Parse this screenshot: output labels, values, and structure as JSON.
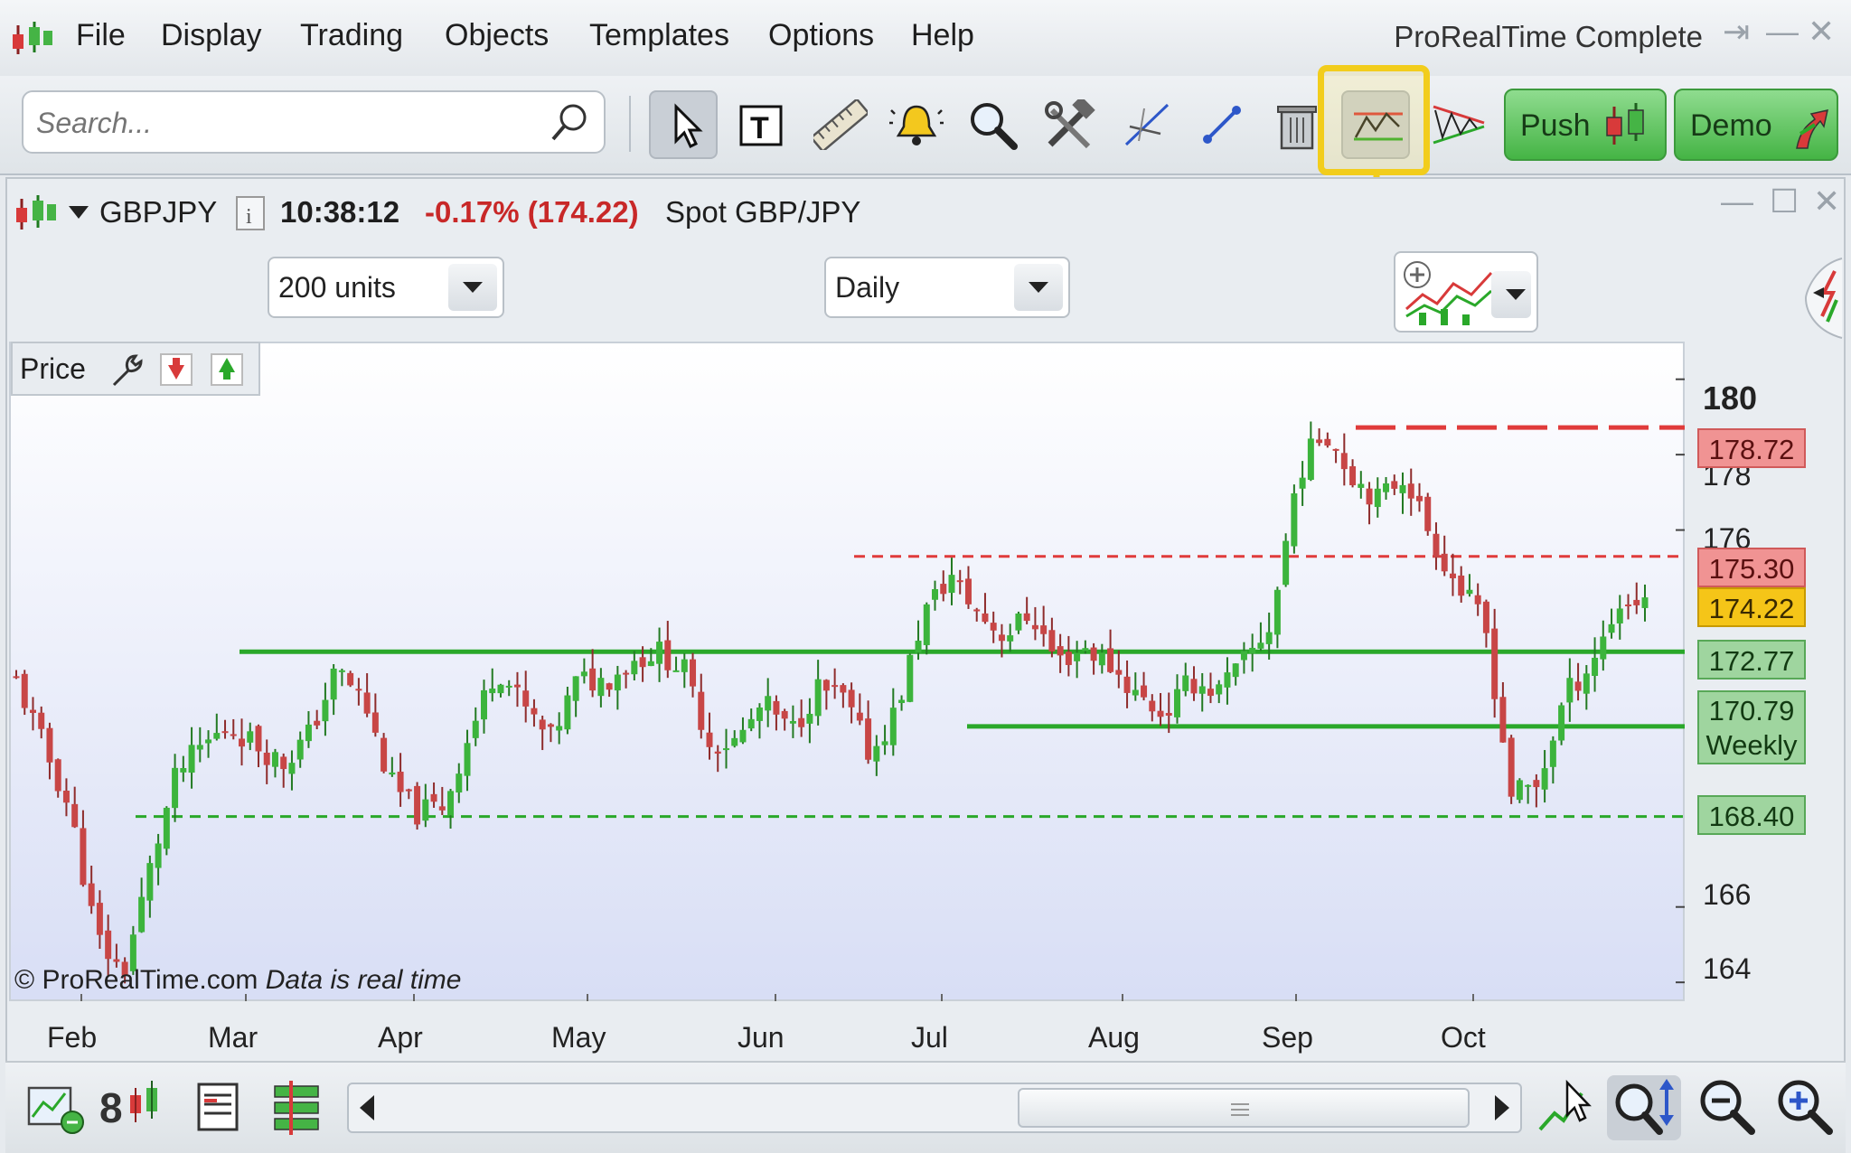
{
  "menubar": {
    "items": [
      "File",
      "Display",
      "Trading",
      "Objects",
      "Templates",
      "Options",
      "Help"
    ],
    "app_title": "ProRealTime Complete"
  },
  "toolbar": {
    "search_placeholder": "Search...",
    "tools": [
      "pointer-icon",
      "text-icon",
      "ruler-icon",
      "alert-bell-icon",
      "zoom-icon",
      "tools-icon",
      "trendline-icon",
      "line-icon",
      "trash-icon",
      "support-resistance-icon",
      "triangle-icon"
    ],
    "push_label": "Push",
    "demo_label": "Demo"
  },
  "chart_window": {
    "symbol": "GBPJPY",
    "time": "10:38:12",
    "change": "-0.17% (174.22)",
    "description": "Spot GBP/JPY",
    "units": "200 units",
    "period": "Daily",
    "panel_label": "Price",
    "copyright": "© ProRealTime.com",
    "realtime_note": "Data is real time"
  },
  "price_labels": [
    {
      "text": "178.72",
      "kind": "resistance"
    },
    {
      "text": "175.30",
      "kind": "resistance"
    },
    {
      "text": "174.22",
      "kind": "current"
    },
    {
      "text": "172.77",
      "kind": "support"
    },
    {
      "text": "170.79",
      "kind": "support"
    },
    {
      "text": "Weekly",
      "kind": "support-note"
    },
    {
      "text": "168.40",
      "kind": "support"
    }
  ],
  "colors": {
    "up_candle": "#3cb43c",
    "down_candle": "#c84646",
    "resistance": "#e03b3b",
    "support": "#2aa82a",
    "current": "#f5c518",
    "highlight": "#f2cd1c"
  },
  "chart_data": {
    "type": "candlestick",
    "instrument": "GBPJPY",
    "timeframe": "Daily",
    "months": [
      "Feb",
      "Mar",
      "Apr",
      "May",
      "Jun",
      "Jul",
      "Aug",
      "Sep",
      "Oct"
    ],
    "y_ticks": [
      164,
      166,
      176,
      178,
      180
    ],
    "ylim": [
      163.5,
      181
    ],
    "horizontal_levels": [
      {
        "value": 178.72,
        "style": "dashed",
        "color": "red"
      },
      {
        "value": 175.3,
        "style": "dotted",
        "color": "red"
      },
      {
        "value": 172.77,
        "style": "solid",
        "color": "green"
      },
      {
        "value": 170.79,
        "style": "solid",
        "color": "green"
      },
      {
        "value": 168.4,
        "style": "dotted",
        "color": "green"
      }
    ],
    "close_path": [
      172.0,
      170.3,
      168.6,
      165.2,
      164.2,
      167.0,
      169.5,
      170.3,
      170.8,
      170.3,
      169.8,
      170.6,
      172.3,
      171.5,
      169.3,
      168.5,
      168.7,
      170.6,
      172.4,
      171.3,
      170.4,
      172.0,
      172.0,
      172.5,
      172.8,
      172.3,
      170.3,
      170.4,
      171.4,
      170.6,
      171.8,
      171.5,
      170.0,
      171.3,
      173.8,
      174.8,
      173.8,
      173.2,
      173.8,
      172.5,
      172.9,
      172.4,
      171.6,
      171.1,
      172.0,
      171.7,
      172.5,
      173.5,
      177.5,
      178.7,
      177.5,
      176.8,
      177.5,
      175.8,
      174.5,
      173.5,
      169.0,
      169.2,
      171.6,
      172.5,
      174.0,
      174.2
    ]
  },
  "bottom_bar": {
    "buttons": [
      "add-chart-icon",
      "indicator-icon",
      "table-icon",
      "layout-icon",
      "cursor-tool-icon",
      "auto-zoom-icon",
      "zoom-out-icon",
      "zoom-in-icon"
    ]
  }
}
